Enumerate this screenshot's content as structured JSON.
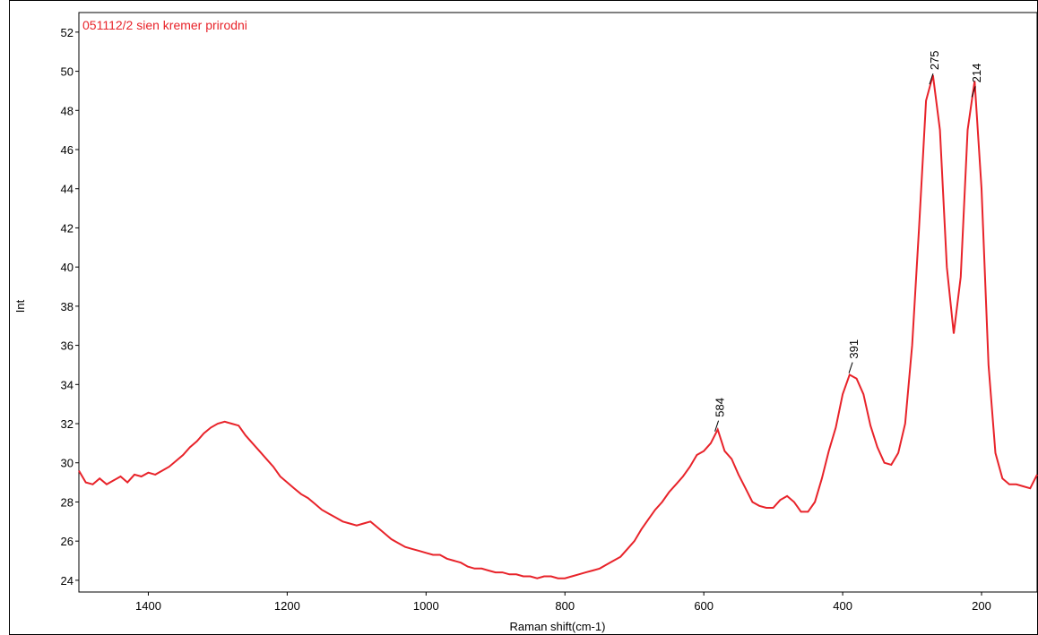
{
  "chart_data": {
    "type": "line",
    "title": "051112/2 sien kremer prirodni",
    "x_label": "Raman shift(cm-1)",
    "y_label": "Int",
    "xlim": [
      1500,
      120
    ],
    "ylim": [
      23.4,
      53
    ],
    "xticks": [
      1400,
      1200,
      1000,
      800,
      600,
      400,
      200
    ],
    "yticks": [
      24,
      26,
      28,
      30,
      32,
      34,
      36,
      38,
      40,
      42,
      44,
      46,
      48,
      50,
      52
    ],
    "peaks": [
      275,
      214,
      391,
      584
    ],
    "series": [
      {
        "color": "#e8232a",
        "x": [
          1500,
          1490,
          1480,
          1470,
          1460,
          1450,
          1440,
          1430,
          1420,
          1410,
          1400,
          1390,
          1380,
          1370,
          1360,
          1350,
          1340,
          1330,
          1320,
          1310,
          1300,
          1290,
          1280,
          1270,
          1260,
          1250,
          1240,
          1230,
          1220,
          1210,
          1200,
          1190,
          1180,
          1170,
          1160,
          1150,
          1140,
          1130,
          1120,
          1110,
          1100,
          1090,
          1080,
          1070,
          1060,
          1050,
          1040,
          1030,
          1020,
          1010,
          1000,
          990,
          980,
          970,
          960,
          950,
          940,
          930,
          920,
          910,
          900,
          890,
          880,
          870,
          860,
          850,
          840,
          830,
          820,
          810,
          800,
          790,
          780,
          770,
          760,
          750,
          740,
          730,
          720,
          710,
          700,
          690,
          680,
          670,
          660,
          650,
          640,
          630,
          620,
          610,
          600,
          590,
          580,
          570,
          560,
          550,
          540,
          530,
          520,
          510,
          500,
          490,
          480,
          470,
          460,
          450,
          440,
          430,
          420,
          410,
          400,
          390,
          380,
          370,
          360,
          350,
          340,
          330,
          320,
          310,
          300,
          290,
          280,
          270,
          260,
          250,
          240,
          230,
          220,
          210,
          200,
          190,
          180,
          170,
          160,
          150,
          140,
          130,
          120
        ],
        "values": [
          29.6,
          29.0,
          28.9,
          29.2,
          28.9,
          29.1,
          29.3,
          29.0,
          29.4,
          29.3,
          29.5,
          29.4,
          29.6,
          29.8,
          30.1,
          30.4,
          30.8,
          31.1,
          31.5,
          31.8,
          32.0,
          32.1,
          32.0,
          31.9,
          31.4,
          31.0,
          30.6,
          30.2,
          29.8,
          29.3,
          29.0,
          28.7,
          28.4,
          28.2,
          27.9,
          27.6,
          27.4,
          27.2,
          27.0,
          26.9,
          26.8,
          26.9,
          27.0,
          26.7,
          26.4,
          26.1,
          25.9,
          25.7,
          25.6,
          25.5,
          25.4,
          25.3,
          25.3,
          25.1,
          25.0,
          24.9,
          24.7,
          24.6,
          24.6,
          24.5,
          24.4,
          24.4,
          24.3,
          24.3,
          24.2,
          24.2,
          24.1,
          24.2,
          24.2,
          24.1,
          24.1,
          24.2,
          24.3,
          24.4,
          24.5,
          24.6,
          24.8,
          25.0,
          25.2,
          25.6,
          26.0,
          26.6,
          27.1,
          27.6,
          28.0,
          28.5,
          28.9,
          29.3,
          29.8,
          30.4,
          30.6,
          31.0,
          31.7,
          30.6,
          30.2,
          29.4,
          28.7,
          28.0,
          27.8,
          27.7,
          27.7,
          28.1,
          28.3,
          28.0,
          27.5,
          27.5,
          28.0,
          29.2,
          30.6,
          31.8,
          33.5,
          34.5,
          34.3,
          33.5,
          31.9,
          30.8,
          30.0,
          29.9,
          30.5,
          32.0,
          36.0,
          42.0,
          48.5,
          49.8,
          47.0,
          40.0,
          36.6,
          39.5,
          47.0,
          49.5,
          44.0,
          35.0,
          30.5,
          29.2,
          28.9,
          28.9,
          28.8,
          28.7,
          29.4
        ]
      }
    ]
  }
}
